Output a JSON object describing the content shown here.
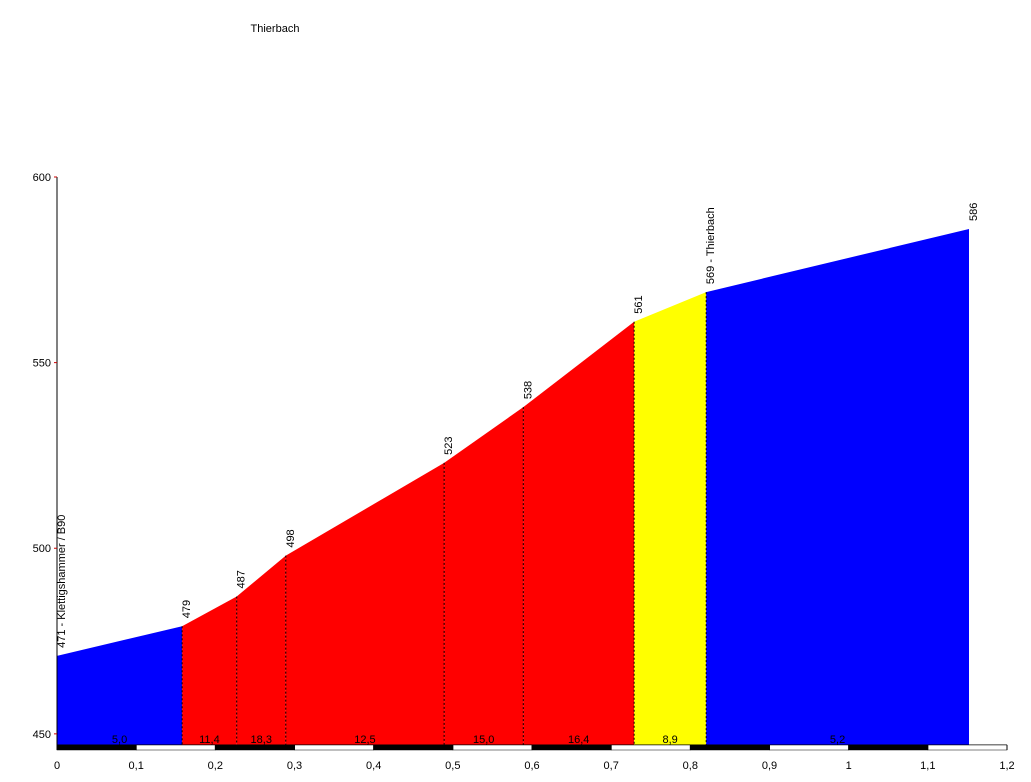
{
  "chart_data": {
    "type": "area",
    "title": "Thierbach",
    "x": [
      0,
      0.158,
      0.227,
      0.289,
      0.489,
      0.589,
      0.729,
      0.82,
      1.152
    ],
    "values": [
      471,
      479,
      487,
      498,
      523,
      538,
      561,
      569,
      586
    ],
    "value_labels": [
      "471 - Klettigshammer / B90",
      "479",
      "487",
      "498",
      "523",
      "538",
      "561",
      "569 - Thierbach",
      "586"
    ],
    "segments": {
      "values": [
        5.0,
        11.4,
        18.3,
        12.5,
        15.0,
        16.4,
        8.9,
        5.2
      ],
      "value_labels": [
        "5,0",
        "11,4",
        "18,3",
        "12,5",
        "15,0",
        "16,4",
        "8,9",
        "5,2"
      ],
      "colors": [
        "#0000ff",
        "#ff0000",
        "#ff0000",
        "#ff0000",
        "#ff0000",
        "#ff0000",
        "#ffff00",
        "#0000ff"
      ]
    },
    "xlim": [
      0,
      1.2
    ],
    "xticks": [
      0,
      {
        "value": 0.1,
        "label": "0,1"
      },
      {
        "value": 0.2,
        "label": "0,2"
      },
      {
        "value": 0.3,
        "label": "0,3"
      },
      {
        "value": 0.4,
        "label": "0,4"
      },
      {
        "value": 0.5,
        "label": "0,5"
      },
      {
        "value": 0.6,
        "label": "0,6"
      },
      {
        "value": 0.7,
        "label": "0,7"
      },
      {
        "value": 0.8,
        "label": "0,8"
      },
      {
        "value": 0.9,
        "label": "0,9"
      },
      1,
      {
        "value": 1.1,
        "label": "1,1"
      },
      {
        "value": 1.2,
        "label": "1,2"
      }
    ],
    "ylim": [
      447,
      600
    ],
    "yticks": [
      450,
      500,
      550,
      600
    ]
  }
}
